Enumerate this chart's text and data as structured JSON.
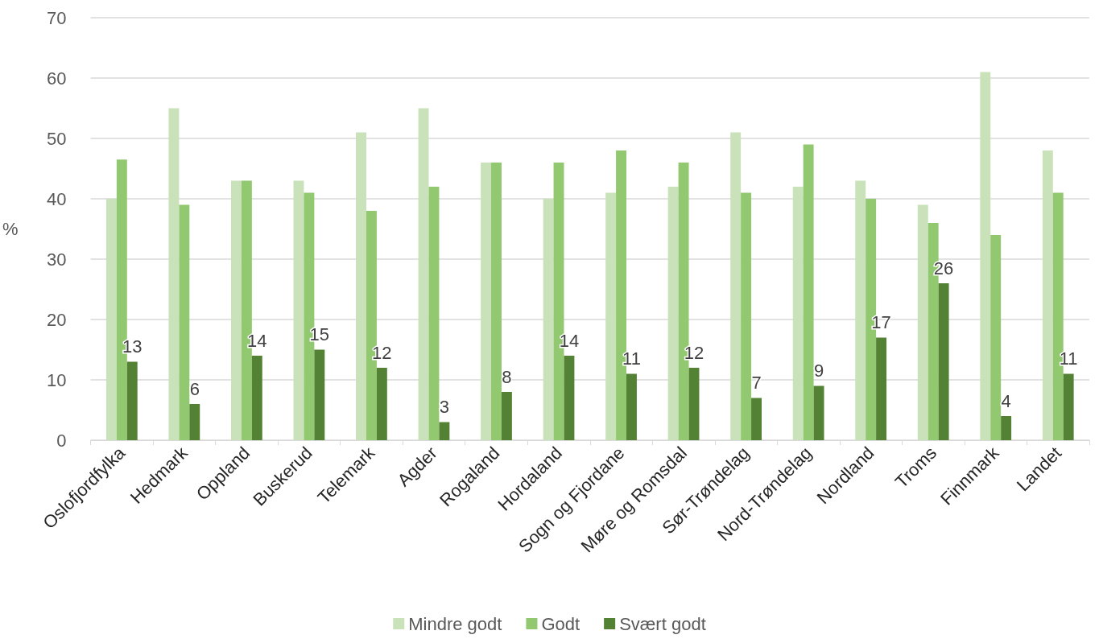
{
  "chart_data": {
    "type": "bar",
    "ylabel": "%",
    "categories": [
      "Oslofjordfylka",
      "Hedmark",
      "Oppland",
      "Buskerud",
      "Telemark",
      "Agder",
      "Rogaland",
      "Hordaland",
      "Sogn og Fjordane",
      "Møre og Romsdal",
      "Sør-Trøndelag",
      "Nord-Trøndelag",
      "Nordland",
      "Troms",
      "Finnmark",
      "Landet"
    ],
    "series": [
      {
        "name": "Mindre godt",
        "color": "#c9e2b9",
        "values": [
          40,
          55,
          43,
          43,
          51,
          55,
          46,
          40,
          41,
          42,
          51,
          42,
          43,
          39,
          61,
          48
        ]
      },
      {
        "name": "Godt",
        "color": "#92c86f",
        "values": [
          46.5,
          39,
          43,
          41,
          38,
          42,
          46,
          46,
          48,
          46,
          41,
          49,
          40,
          36,
          34,
          41
        ]
      },
      {
        "name": "Svært godt",
        "color": "#548235",
        "values": [
          13,
          6,
          14,
          15,
          12,
          3,
          8,
          14,
          11,
          12,
          7,
          9,
          17,
          26,
          4,
          11
        ],
        "value_labels": [
          "13",
          "6",
          "14",
          "15",
          "12",
          "3",
          "8",
          "14",
          "11",
          "12",
          "7",
          "9",
          "17",
          "26",
          "4",
          "11"
        ]
      }
    ],
    "ylim": [
      0,
      70
    ],
    "yticks": [
      0,
      10,
      20,
      30,
      40,
      50,
      60,
      70
    ],
    "grid": "y",
    "legend": "bottom"
  }
}
